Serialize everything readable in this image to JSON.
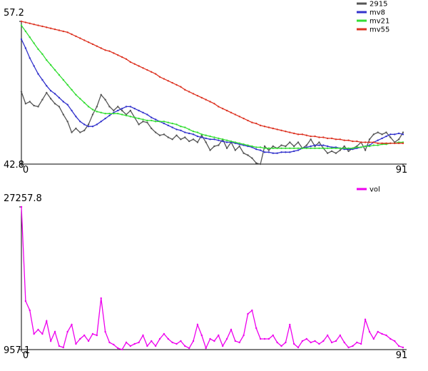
{
  "chart_data": [
    {
      "type": "line",
      "legend": "top-right",
      "x": [
        0,
        1,
        2,
        3,
        4,
        5,
        6,
        7,
        8,
        9,
        10,
        11,
        12,
        13,
        14,
        15,
        16,
        17,
        18,
        19,
        20,
        21,
        22,
        23,
        24,
        25,
        26,
        27,
        28,
        29,
        30,
        31,
        32,
        33,
        34,
        35,
        36,
        37,
        38,
        39,
        40,
        41,
        42,
        43,
        44,
        45,
        46,
        47,
        48,
        49,
        50,
        51,
        52,
        53,
        54,
        55,
        56,
        57,
        58,
        59,
        60,
        61,
        62,
        63,
        64,
        65,
        66,
        67,
        68,
        69,
        70,
        71,
        72,
        73,
        74,
        75,
        76,
        77,
        78,
        79,
        80,
        81,
        82,
        83,
        84,
        85,
        86,
        87,
        88,
        89,
        90,
        91
      ],
      "xlim": [
        0,
        91
      ],
      "xticks": [
        0,
        91
      ],
      "ylim": [
        42.8,
        57.2
      ],
      "yticks": [
        42.8,
        57.2
      ],
      "series": [
        {
          "name": "2915",
          "color": "#555555",
          "values": [
            50.1,
            48.9,
            49.1,
            48.7,
            48.6,
            49.3,
            50.0,
            49.4,
            48.9,
            48.6,
            47.8,
            47.1,
            46.0,
            46.4,
            46.0,
            46.2,
            46.8,
            47.8,
            48.6,
            49.8,
            49.3,
            48.6,
            48.2,
            48.6,
            48.2,
            47.8,
            48.2,
            47.5,
            46.8,
            47.1,
            47.0,
            46.4,
            46.0,
            45.7,
            45.8,
            45.5,
            45.3,
            45.7,
            45.3,
            45.5,
            45.1,
            45.3,
            45.0,
            45.7,
            45.0,
            44.2,
            44.6,
            44.7,
            45.3,
            44.4,
            45.0,
            44.2,
            44.6,
            43.9,
            43.7,
            43.4,
            42.9,
            42.8,
            44.6,
            44.2,
            44.6,
            44.4,
            44.7,
            44.6,
            45.0,
            44.6,
            45.0,
            44.4,
            44.7,
            45.3,
            44.6,
            45.0,
            44.4,
            43.9,
            44.1,
            43.9,
            44.2,
            44.6,
            44.1,
            44.4,
            44.6,
            45.0,
            44.2,
            45.3,
            45.8,
            46.0,
            45.8,
            46.0,
            45.5,
            45.0,
            45.3,
            46.0
          ]
        },
        {
          "name": "mv8",
          "color": "#3333cc",
          "values": [
            55.4,
            54.5,
            53.5,
            52.7,
            51.9,
            51.3,
            50.7,
            50.2,
            49.9,
            49.5,
            49.1,
            48.8,
            48.2,
            47.6,
            47.1,
            46.8,
            46.6,
            46.6,
            46.8,
            47.1,
            47.4,
            47.7,
            48.0,
            48.2,
            48.4,
            48.6,
            48.6,
            48.4,
            48.2,
            48.0,
            47.8,
            47.5,
            47.3,
            47.1,
            46.9,
            46.7,
            46.5,
            46.3,
            46.2,
            46.0,
            45.9,
            45.8,
            45.6,
            45.5,
            45.4,
            45.3,
            45.3,
            45.2,
            45.1,
            45.0,
            45.0,
            44.9,
            44.8,
            44.7,
            44.6,
            44.5,
            44.3,
            44.2,
            44.0,
            44.0,
            43.9,
            43.9,
            44.0,
            44.0,
            44.0,
            44.1,
            44.2,
            44.4,
            44.5,
            44.6,
            44.7,
            44.7,
            44.7,
            44.6,
            44.5,
            44.5,
            44.4,
            44.3,
            44.3,
            44.3,
            44.4,
            44.5,
            44.6,
            44.7,
            45.0,
            45.2,
            45.4,
            45.6,
            45.8,
            45.8,
            45.9,
            45.8
          ]
        },
        {
          "name": "mv21",
          "color": "#33dd33",
          "values": [
            56.8,
            56.2,
            55.6,
            55.0,
            54.4,
            53.9,
            53.3,
            52.8,
            52.3,
            51.8,
            51.3,
            50.8,
            50.3,
            49.8,
            49.4,
            49.0,
            48.6,
            48.3,
            48.1,
            48.0,
            47.9,
            47.9,
            47.9,
            47.9,
            47.8,
            47.7,
            47.6,
            47.5,
            47.4,
            47.3,
            47.2,
            47.2,
            47.1,
            47.1,
            47.1,
            47.0,
            46.9,
            46.8,
            46.6,
            46.5,
            46.3,
            46.1,
            46.0,
            45.8,
            45.7,
            45.6,
            45.5,
            45.4,
            45.3,
            45.2,
            45.1,
            45.0,
            44.9,
            44.8,
            44.7,
            44.6,
            44.5,
            44.5,
            44.4,
            44.4,
            44.4,
            44.4,
            44.4,
            44.4,
            44.4,
            44.4,
            44.4,
            44.4,
            44.4,
            44.4,
            44.4,
            44.4,
            44.4,
            44.4,
            44.4,
            44.4,
            44.4,
            44.4,
            44.4,
            44.4,
            44.5,
            44.5,
            44.6,
            44.6,
            44.7,
            44.7,
            44.8,
            44.8,
            44.9,
            44.9,
            45.0,
            45.0
          ]
        },
        {
          "name": "mv55",
          "color": "#dd3322",
          "values": [
            57.2,
            57.1,
            57.0,
            56.9,
            56.8,
            56.7,
            56.6,
            56.5,
            56.4,
            56.3,
            56.2,
            56.1,
            55.9,
            55.7,
            55.5,
            55.3,
            55.1,
            54.9,
            54.7,
            54.5,
            54.3,
            54.2,
            54.0,
            53.8,
            53.6,
            53.4,
            53.1,
            52.9,
            52.7,
            52.5,
            52.3,
            52.1,
            51.9,
            51.6,
            51.4,
            51.2,
            51.0,
            50.8,
            50.6,
            50.3,
            50.1,
            49.9,
            49.7,
            49.5,
            49.3,
            49.1,
            48.9,
            48.6,
            48.4,
            48.2,
            48.0,
            47.8,
            47.6,
            47.4,
            47.2,
            47.0,
            46.9,
            46.7,
            46.6,
            46.5,
            46.4,
            46.3,
            46.2,
            46.1,
            46.0,
            45.9,
            45.8,
            45.8,
            45.7,
            45.6,
            45.6,
            45.5,
            45.5,
            45.4,
            45.4,
            45.3,
            45.3,
            45.2,
            45.2,
            45.1,
            45.1,
            45.0,
            45.0,
            45.0,
            45.0,
            44.9,
            44.9,
            44.9,
            44.9,
            44.9,
            44.9,
            44.9
          ]
        }
      ]
    },
    {
      "type": "line",
      "legend": "top-right",
      "x": [
        0,
        1,
        2,
        3,
        4,
        5,
        6,
        7,
        8,
        9,
        10,
        11,
        12,
        13,
        14,
        15,
        16,
        17,
        18,
        19,
        20,
        21,
        22,
        23,
        24,
        25,
        26,
        27,
        28,
        29,
        30,
        31,
        32,
        33,
        34,
        35,
        36,
        37,
        38,
        39,
        40,
        41,
        42,
        43,
        44,
        45,
        46,
        47,
        48,
        49,
        50,
        51,
        52,
        53,
        54,
        55,
        56,
        57,
        58,
        59,
        60,
        61,
        62,
        63,
        64,
        65,
        66,
        67,
        68,
        69,
        70,
        71,
        72,
        73,
        74,
        75,
        76,
        77,
        78,
        79,
        80,
        81,
        82,
        83,
        84,
        85,
        86,
        87,
        88,
        89,
        90,
        91
      ],
      "xlim": [
        0,
        91
      ],
      "xticks": [
        0,
        91
      ],
      "ylim": [
        957.1,
        27257.8
      ],
      "yticks": [
        957.1,
        27257.8
      ],
      "series": [
        {
          "name": "vol",
          "color": "#ee00ee",
          "values": [
            27257.8,
            9899,
            8190,
            3850,
            4639,
            3850,
            6217,
            2535,
            4245,
            1615,
            1352,
            4245,
            5560,
            2009,
            2930,
            3587,
            2535,
            3850,
            3587,
            10425,
            4245,
            2272,
            1878,
            1220,
            960,
            2272,
            1615,
            2009,
            2272,
            3587,
            1615,
            2535,
            1615,
            2930,
            3850,
            2930,
            2272,
            2009,
            2535,
            1615,
            1220,
            2535,
            5560,
            3587,
            1220,
            2930,
            2535,
            3587,
            1615,
            2930,
            4639,
            2535,
            2272,
            3587,
            7532,
            8190,
            4902,
            2930,
            2930,
            2930,
            3587,
            2272,
            1615,
            2272,
            5560,
            2009,
            1352,
            2535,
            2930,
            2272,
            2535,
            2009,
            2535,
            3587,
            2272,
            2535,
            3587,
            2272,
            1352,
            1615,
            2272,
            2009,
            6480,
            4245,
            2930,
            4245,
            3850,
            3587,
            2930,
            2535,
            1615,
            1352
          ]
        }
      ]
    }
  ]
}
